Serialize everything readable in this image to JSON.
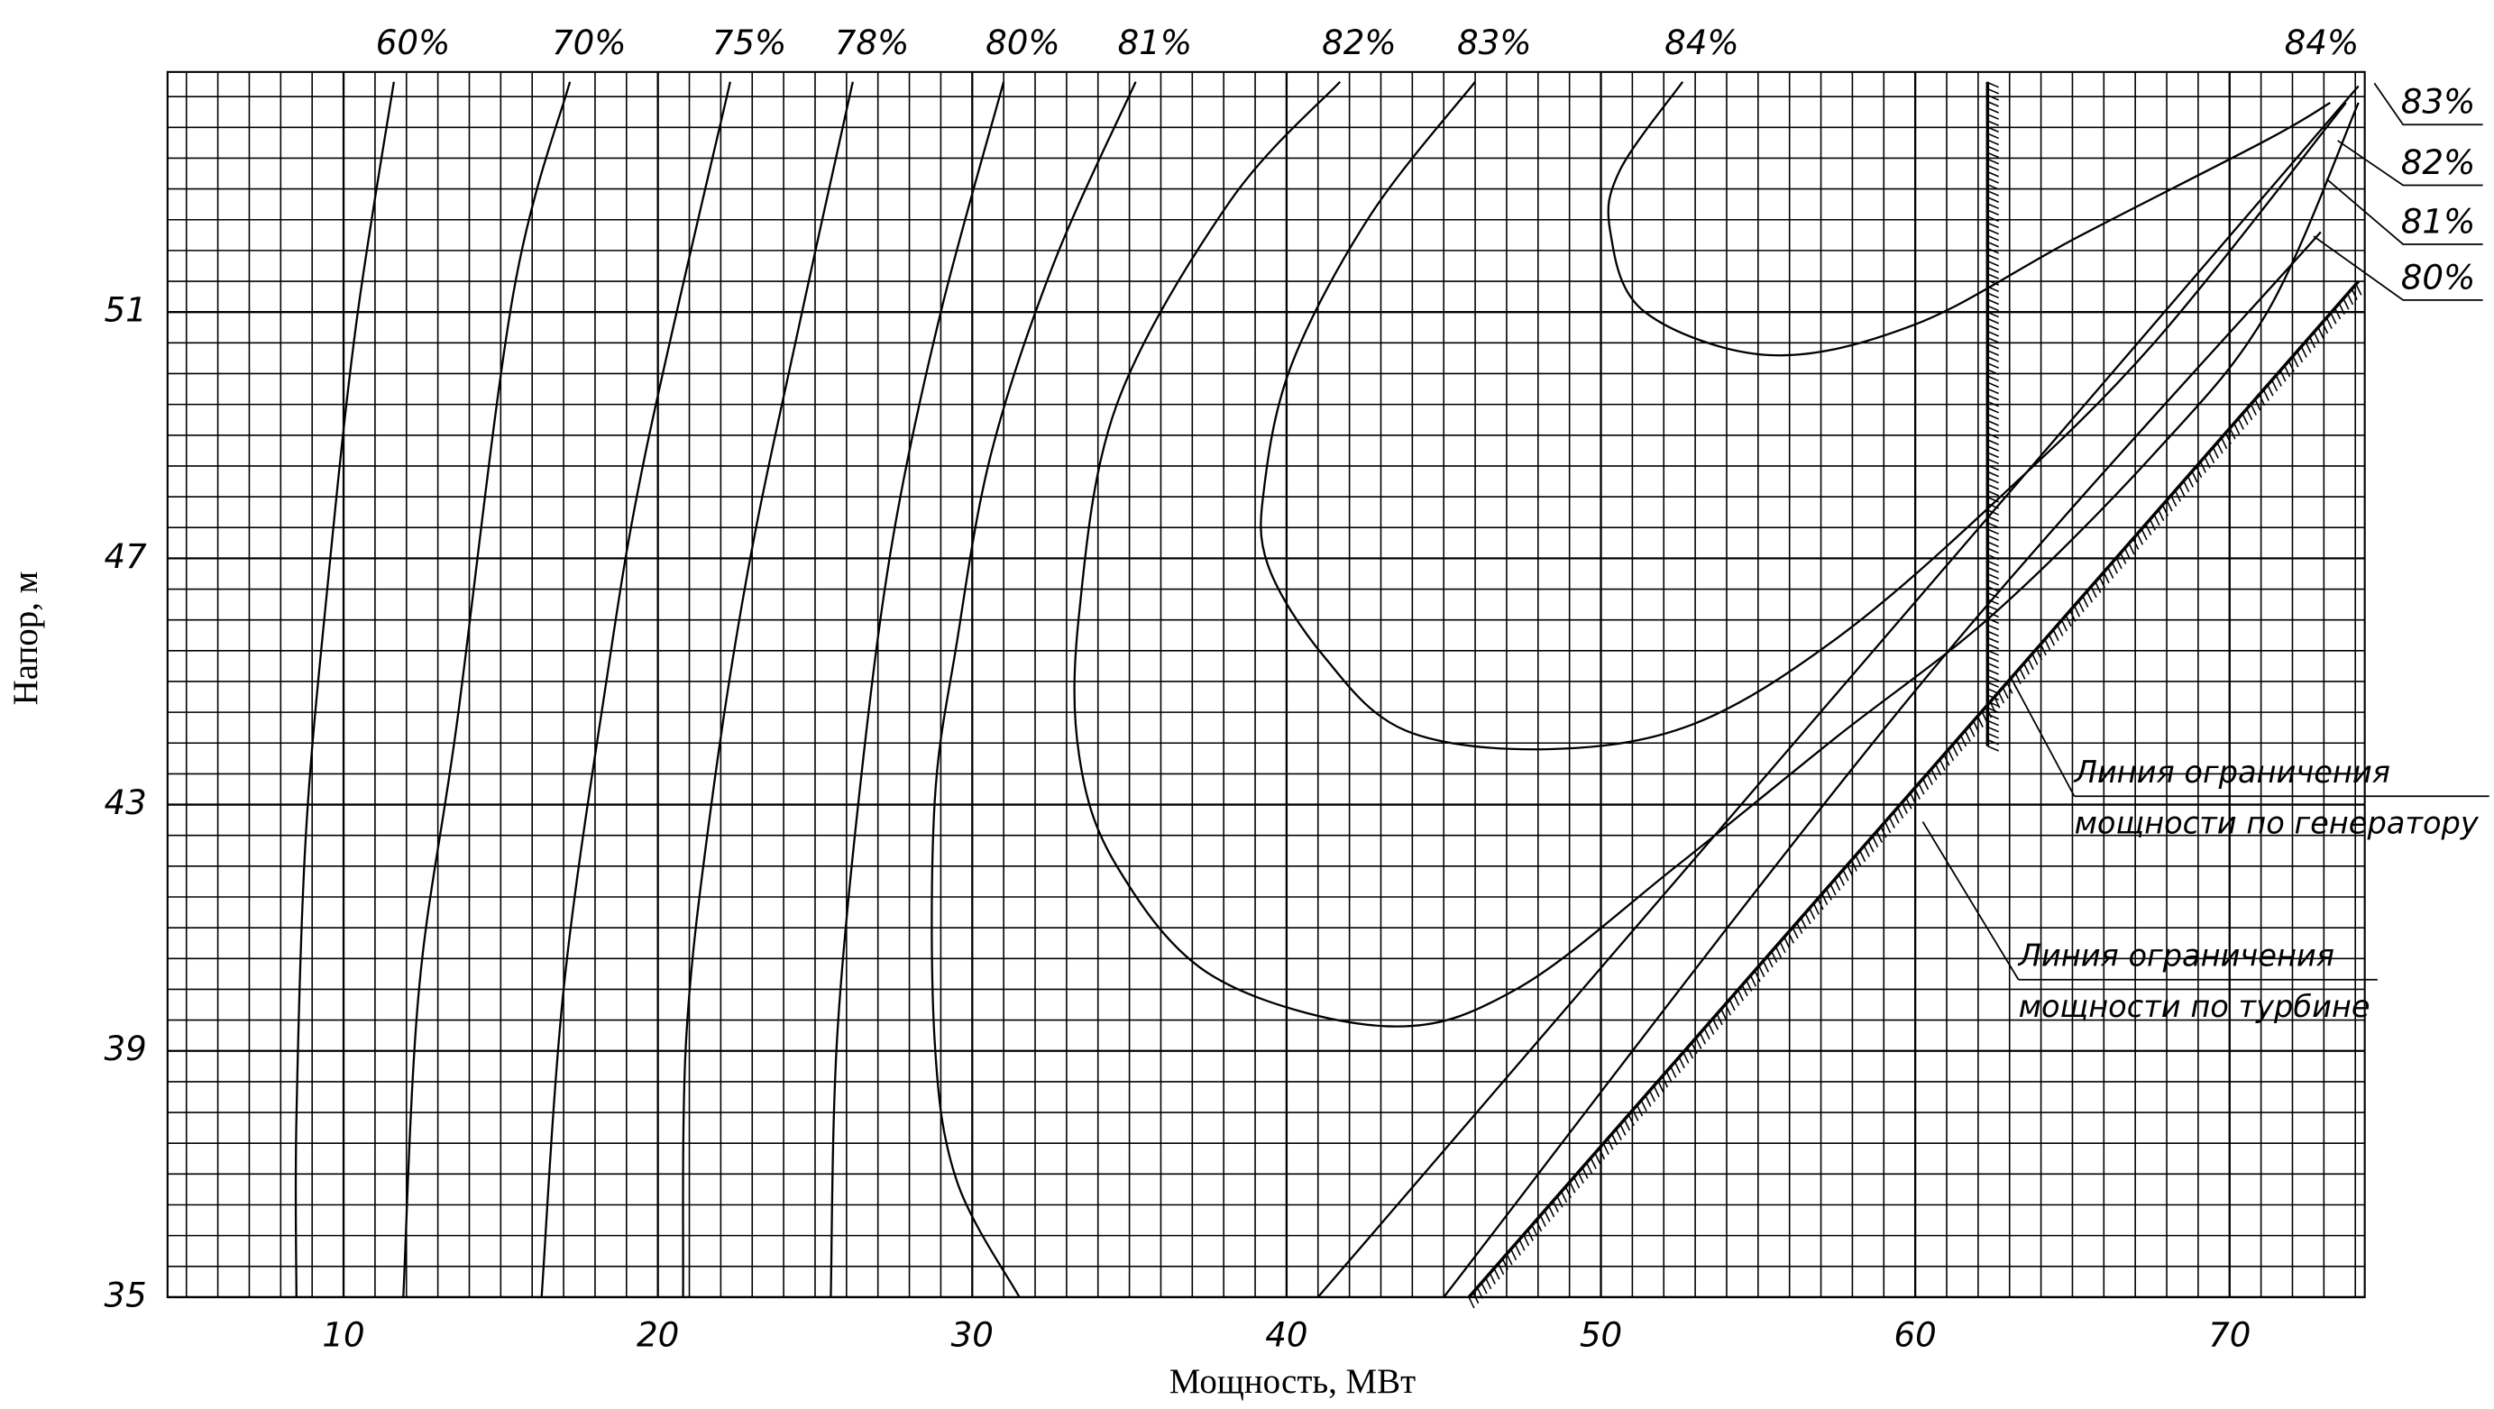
{
  "chart_data": {
    "type": "line",
    "x_label": "Мощность, МВт",
    "y_label": "Напор, м",
    "xlim": [
      4.4,
      74.3
    ],
    "ylim": [
      35,
      54.9
    ],
    "xticks": [
      10,
      20,
      30,
      40,
      50,
      60,
      70
    ],
    "yticks": [
      35,
      39,
      43,
      47,
      51
    ],
    "grid": true,
    "color": "#000000",
    "series": [
      {
        "name": "60%",
        "x": [
          11.6,
          10.4,
          9.5,
          8.8,
          8.5,
          8.5
        ],
        "y": [
          54.74,
          50.8,
          46.6,
          42.5,
          37.9,
          35
        ]
      },
      {
        "name": "70%",
        "x": [
          17.2,
          15.4,
          13.6,
          12.4,
          11.9
        ],
        "y": [
          54.74,
          51.3,
          44.3,
          40.0,
          35
        ]
      },
      {
        "name": "75%",
        "x": [
          22.3,
          19.6,
          18.3,
          17.0,
          16.3
        ],
        "y": [
          54.74,
          48.7,
          44.8,
          40.0,
          35
        ]
      },
      {
        "name": "78%",
        "x": [
          26.2,
          24.5,
          22.9,
          21.7,
          20.9,
          20.8
        ],
        "y": [
          54.74,
          50.8,
          46.9,
          43.0,
          39.2,
          35
        ]
      },
      {
        "name": "80%",
        "x": [
          31.0,
          29.0,
          27.5,
          26.5,
          25.7,
          25.5,
          null,
          45.0,
          60.0,
          72.9
        ],
        "y": [
          54.74,
          51.0,
          47.4,
          43.6,
          39.2,
          35,
          null,
          35,
          44.85,
          52.3
        ]
      },
      {
        "name": "81%",
        "x": [
          35.2,
          32.6,
          30.6,
          29.5,
          28.8,
          28.8,
          29.5,
          31.5,
          null,
          41.0,
          74.1
        ],
        "y": [
          54.74,
          51.8,
          48.7,
          45.6,
          43.0,
          39.2,
          36.9,
          35,
          null,
          35,
          54.67
        ]
      },
      {
        "name": "82%",
        "x": [
          41.7,
          38.2,
          34.6,
          33.4,
          33.4,
          34.6,
          37.7,
          43.2,
          47.3,
          52.4,
          57.5,
          62.5,
          67.6,
          71.2,
          74.1
        ],
        "y": [
          54.74,
          52.8,
          49.5,
          46.1,
          43.8,
          42.0,
          40.2,
          39.4,
          40.0,
          42.0,
          44.1,
          46.1,
          48.7,
          51.0,
          54.4
        ]
      },
      {
        "name": "83%",
        "x": [
          46.0,
          42.7,
          40.2,
          39.3,
          39.4,
          41.2,
          43.8,
          48.3,
          52.9,
          57.5,
          62.5,
          67.6,
          73.7
        ],
        "y": [
          54.74,
          52.6,
          50.2,
          48.2,
          46.9,
          45.4,
          44.2,
          43.9,
          44.3,
          45.7,
          47.9,
          50.5,
          54.4
        ]
      },
      {
        "name": "84%",
        "x": [
          52.6,
          50.6,
          50.3,
          51.4,
          55.4,
          60.0,
          65.1,
          71.2,
          73.2
        ],
        "y": [
          54.74,
          53.3,
          52.3,
          51.0,
          50.3,
          50.8,
          52.2,
          53.8,
          54.4
        ]
      }
    ],
    "right_labels": [
      "84%",
      "83%",
      "82%",
      "81%",
      "80%"
    ],
    "limit_lines": [
      {
        "label": [
          "Линия ограничения",
          "мощности по генератору"
        ],
        "x": [
          62.3,
          62.3
        ],
        "y": [
          43.95,
          54.74
        ]
      },
      {
        "label": [
          "Линия ограничения",
          "мощности по турбине"
        ],
        "x": [
          45.8,
          74.1
        ],
        "y": [
          35,
          51.5
        ]
      }
    ]
  }
}
